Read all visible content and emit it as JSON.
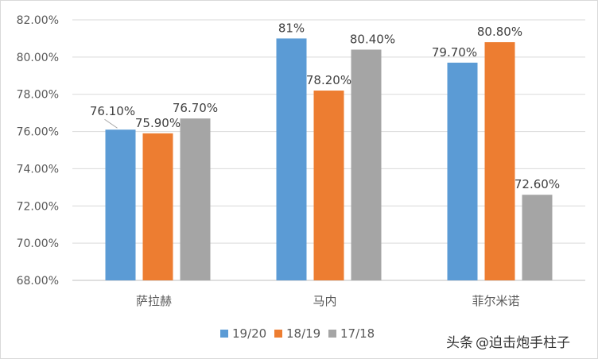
{
  "chart_data": {
    "type": "bar",
    "title": "",
    "xlabel": "",
    "ylabel": "",
    "categories": [
      "萨拉赫",
      "马内",
      "菲尔米诺"
    ],
    "series": [
      {
        "name": "19/20",
        "color": "#5b9bd5",
        "values": [
          76.1,
          81.0,
          79.7
        ],
        "labels": [
          "76.10%",
          "81%",
          "79.70%"
        ]
      },
      {
        "name": "18/19",
        "color": "#ed7d31",
        "values": [
          75.9,
          78.2,
          80.8
        ],
        "labels": [
          "75.90%",
          "78.20%",
          "80.80%"
        ]
      },
      {
        "name": "17/18",
        "color": "#a5a5a5",
        "values": [
          76.7,
          80.4,
          72.6
        ],
        "labels": [
          "76.70%",
          "80.40%",
          "72.60%"
        ]
      }
    ],
    "ylim": [
      68,
      82
    ],
    "yticks": [
      "68.00%",
      "70.00%",
      "72.00%",
      "74.00%",
      "76.00%",
      "78.00%",
      "80.00%",
      "82.00%"
    ],
    "grid": true,
    "legend_position": "bottom"
  },
  "watermark": {
    "prefix": "头条",
    "handle": "@迫击炮手柱子"
  }
}
